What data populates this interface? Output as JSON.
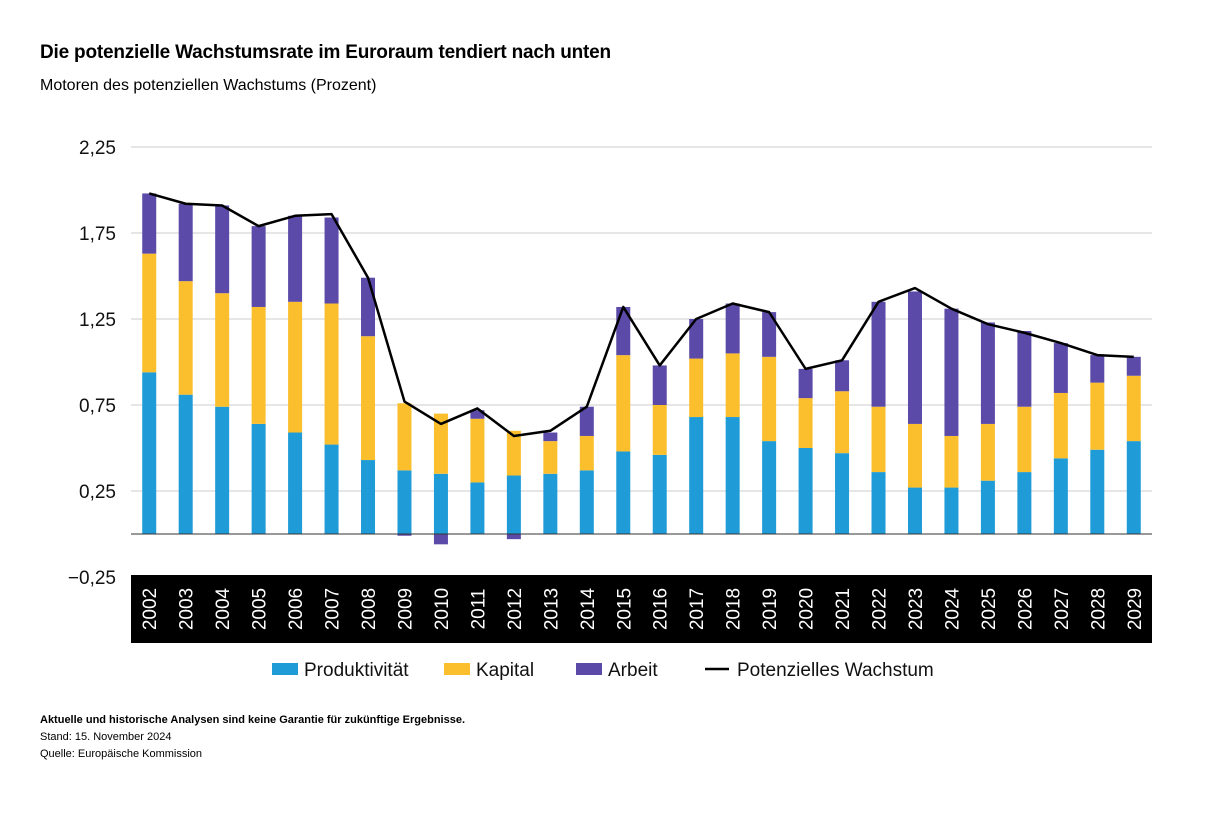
{
  "title": "Die potenzielle Wachstumsrate im Euroraum tendiert nach unten",
  "subtitle": "Motoren des potenziellen Wachstums (Prozent)",
  "colors": {
    "produktivitaet": "#1f9bd7",
    "kapital": "#fbbf2e",
    "arbeit": "#5c4aa8",
    "line": "#000000",
    "grid": "#cccccc",
    "year_band": "#000000"
  },
  "chart_data": {
    "type": "bar",
    "stacked": true,
    "title": "Die potenzielle Wachstumsrate im Euroraum tendiert nach unten",
    "subtitle": "Motoren des potenziellen Wachstums (Prozent)",
    "categories": [
      "2002",
      "2003",
      "2004",
      "2005",
      "2006",
      "2007",
      "2008",
      "2009",
      "2010",
      "2011",
      "2012",
      "2013",
      "2014",
      "2015",
      "2016",
      "2017",
      "2018",
      "2019",
      "2020",
      "2021",
      "2022",
      "2023",
      "2024",
      "2025",
      "2026",
      "2027",
      "2028",
      "2029"
    ],
    "yticks": [
      "2,25",
      "1,75",
      "1,25",
      "0,75",
      "0,25",
      "−0,25"
    ],
    "ytick_values": [
      2.25,
      1.75,
      1.25,
      0.75,
      0.25,
      -0.25
    ],
    "ylim": [
      -0.25,
      2.25
    ],
    "series": [
      {
        "name": "Produktivität",
        "key": "produktivitaet",
        "values": [
          0.94,
          0.81,
          0.74,
          0.64,
          0.59,
          0.52,
          0.43,
          0.37,
          0.35,
          0.3,
          0.34,
          0.35,
          0.37,
          0.48,
          0.46,
          0.68,
          0.68,
          0.54,
          0.5,
          0.47,
          0.36,
          0.27,
          0.27,
          0.31,
          0.36,
          0.44,
          0.49,
          0.54
        ]
      },
      {
        "name": "Kapital",
        "key": "kapital",
        "values": [
          0.69,
          0.66,
          0.66,
          0.68,
          0.76,
          0.82,
          0.72,
          0.39,
          0.35,
          0.37,
          0.26,
          0.19,
          0.2,
          0.56,
          0.29,
          0.34,
          0.37,
          0.49,
          0.29,
          0.36,
          0.38,
          0.37,
          0.3,
          0.33,
          0.38,
          0.38,
          0.39,
          0.38
        ]
      },
      {
        "name": "Arbeit",
        "key": "arbeit",
        "values": [
          0.35,
          0.45,
          0.51,
          0.47,
          0.5,
          0.5,
          0.34,
          -0.01,
          -0.06,
          0.05,
          -0.03,
          0.05,
          0.17,
          0.28,
          0.23,
          0.23,
          0.29,
          0.26,
          0.17,
          0.18,
          0.61,
          0.77,
          0.74,
          0.59,
          0.44,
          0.29,
          0.16,
          0.11
        ]
      }
    ],
    "line": {
      "name": "Potenzielles Wachstum",
      "values": [
        1.98,
        1.92,
        1.91,
        1.79,
        1.85,
        1.86,
        1.49,
        0.77,
        0.64,
        0.73,
        0.57,
        0.6,
        0.74,
        1.32,
        0.98,
        1.25,
        1.34,
        1.29,
        0.96,
        1.01,
        1.35,
        1.43,
        1.31,
        1.22,
        1.17,
        1.11,
        1.04,
        1.03
      ]
    },
    "grid": true,
    "legend_position": "bottom"
  },
  "legend": [
    {
      "key": "produktivitaet",
      "label": "Produktivität"
    },
    {
      "key": "kapital",
      "label": "Kapital"
    },
    {
      "key": "arbeit",
      "label": "Arbeit"
    },
    {
      "key": "line",
      "label": "Potenzielles Wachstum"
    }
  ],
  "notes": {
    "disclaimer": "Aktuelle und historische Analysen sind keine Garantie für zukünftige Ergebnisse.",
    "stand": "Stand: 15. November 2024",
    "quelle": "Quelle: Europäische Kommission"
  }
}
